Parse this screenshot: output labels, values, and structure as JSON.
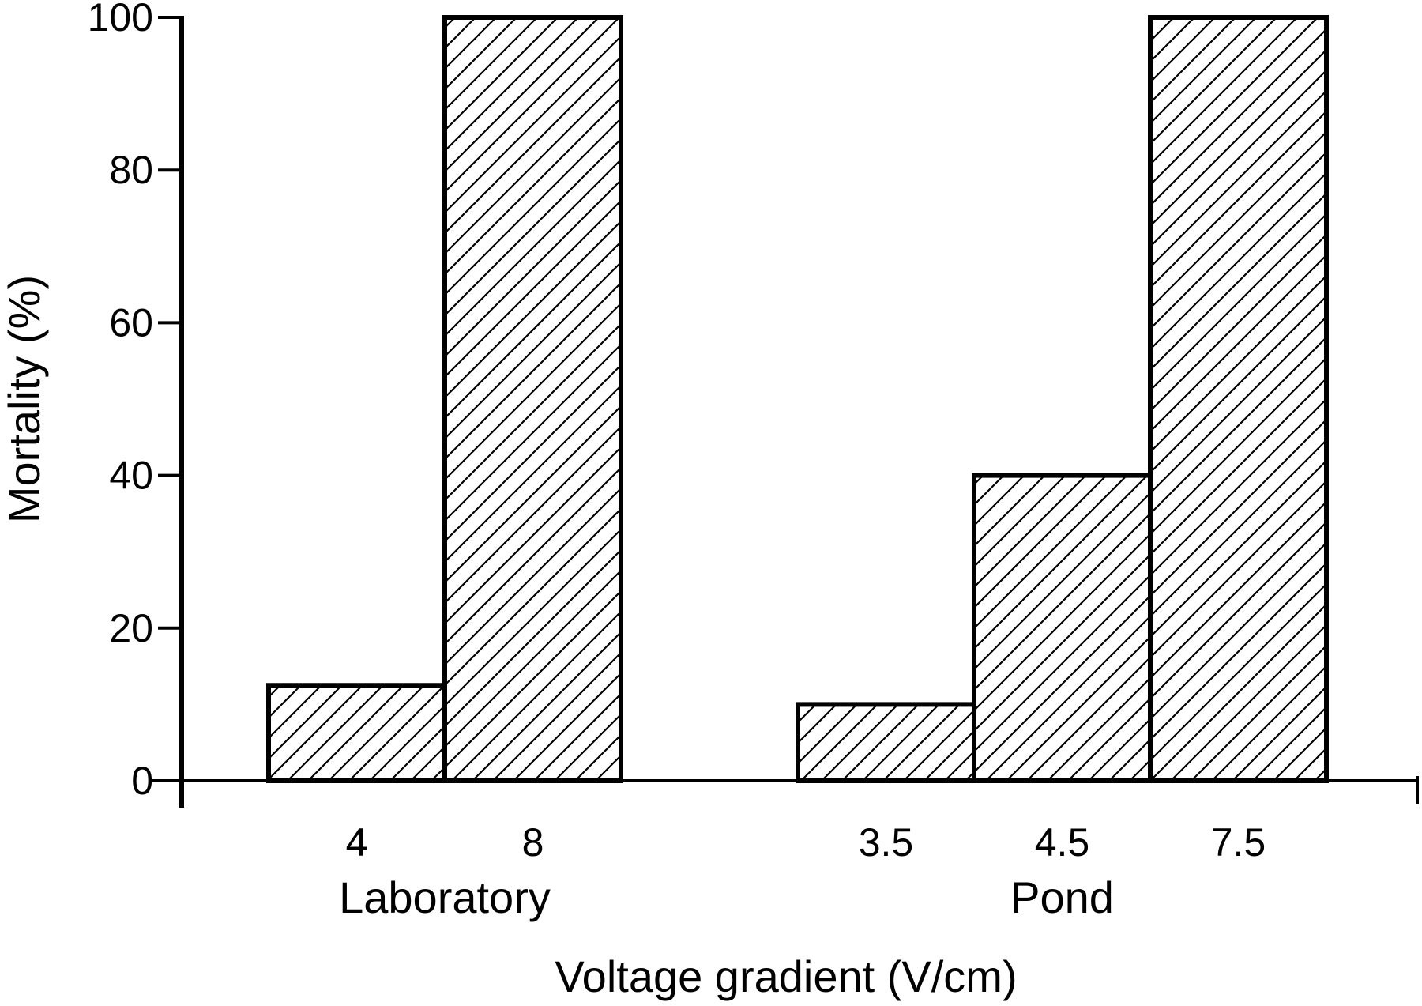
{
  "chart_data": {
    "type": "bar",
    "title": "",
    "xlabel": "Voltage gradient (V/cm)",
    "ylabel": "Mortality (%)",
    "ylim": [
      0,
      100
    ],
    "yticks": [
      "0",
      "20",
      "40",
      "60",
      "80",
      "100"
    ],
    "grid": false,
    "legend": "none",
    "fill_pattern": "diagonal-hatch",
    "groups": [
      {
        "label": "Laboratory",
        "categories": [
          "4",
          "8"
        ],
        "values": [
          12.5,
          100
        ]
      },
      {
        "label": "Pond",
        "categories": [
          "3.5",
          "4.5",
          "7.5"
        ],
        "values": [
          10,
          40,
          100
        ]
      }
    ],
    "colors": {
      "stroke": "#000000",
      "background": "#ffffff",
      "hatch": "#000000"
    }
  }
}
